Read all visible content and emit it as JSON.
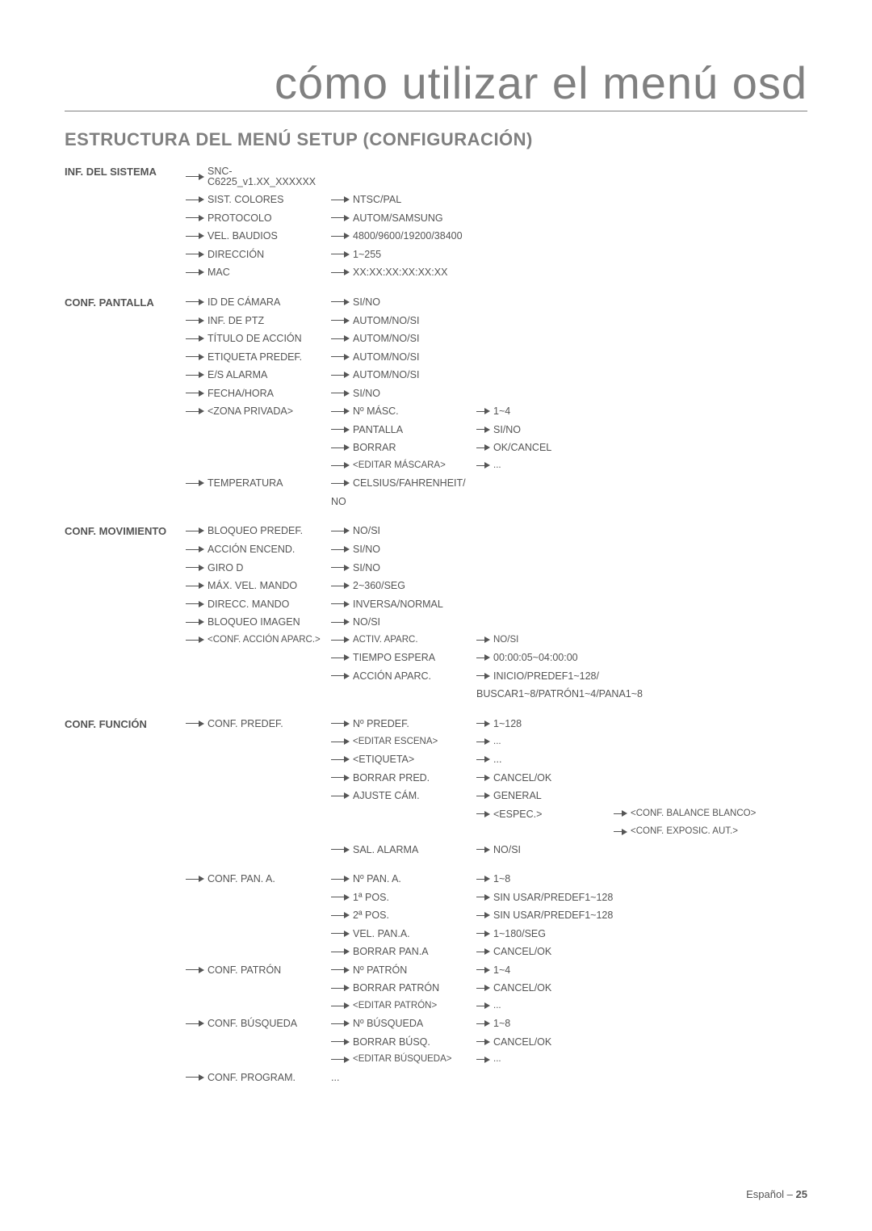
{
  "title": "cómo utilizar el menú osd",
  "section_header": "ESTRUCTURA DEL MENÚ SETUP (CONFIGURACIÓN)",
  "footer_label": "Español – ",
  "footer_page": "25",
  "sections": [
    {
      "category": "INF. DEL SISTEMA",
      "rows": [
        {
          "c1": "SNC-C6225_v1.XX_XXXXXX",
          "c2": "",
          "c3": "",
          "c4": ""
        },
        {
          "c1": "SIST. COLORES",
          "c2": "NTSC/PAL",
          "c3": "",
          "c4": ""
        },
        {
          "c1": "PROTOCOLO",
          "c2": "AUTOM/SAMSUNG",
          "c3": "",
          "c4": ""
        },
        {
          "c1": "VEL. BAUDIOS",
          "c2": "4800/9600/19200/38400",
          "c3": "",
          "c4": ""
        },
        {
          "c1": "DIRECCIÓN",
          "c2": "1~255",
          "c3": "",
          "c4": ""
        },
        {
          "c1": "MAC",
          "c2": "XX:XX:XX:XX:XX:XX",
          "c3": "",
          "c4": ""
        }
      ]
    },
    {
      "category": "CONF. PANTALLA",
      "rows": [
        {
          "c1": "ID DE CÁMARA",
          "c2": "SI/NO",
          "c3": "",
          "c4": ""
        },
        {
          "c1": "INF. DE PTZ",
          "c2": "AUTOM/NO/SI",
          "c3": "",
          "c4": ""
        },
        {
          "c1": "TÍTULO DE ACCIÓN",
          "c2": "AUTOM/NO/SI",
          "c3": "",
          "c4": ""
        },
        {
          "c1": "ETIQUETA PREDEF.",
          "c2": "AUTOM/NO/SI",
          "c3": "",
          "c4": ""
        },
        {
          "c1": "E/S ALARMA",
          "c2": "AUTOM/NO/SI",
          "c3": "",
          "c4": ""
        },
        {
          "c1": "FECHA/HORA",
          "c2": "SI/NO",
          "c3": "",
          "c4": ""
        },
        {
          "c1": "<ZONA PRIVADA>",
          "c2": "Nº MÁSC.",
          "c3": "1~4",
          "c4": ""
        },
        {
          "c1": "",
          "c2": "PANTALLA",
          "c3": "SI/NO",
          "c4": ""
        },
        {
          "c1": "",
          "c2": "BORRAR",
          "c3": "OK/CANCEL",
          "c4": ""
        },
        {
          "c1": "",
          "c2": "<EDITAR MÁSCARA>",
          "c3": "...",
          "c4": "",
          "sm": true
        },
        {
          "c1": "TEMPERATURA",
          "c2": "CELSIUS/FAHRENHEIT/",
          "c3": "",
          "c4": ""
        },
        {
          "c1": "",
          "c2": "NO",
          "noarrow2": true,
          "c3": "",
          "c4": ""
        }
      ]
    },
    {
      "category": "CONF. MOVIMIENTO",
      "rows": [
        {
          "c1": "BLOQUEO PREDEF.",
          "c2": "NO/SI",
          "c3": "",
          "c4": ""
        },
        {
          "c1": "ACCIÓN ENCEND.",
          "c2": "SI/NO",
          "c3": "",
          "c4": ""
        },
        {
          "c1": "GIRO D",
          "c2": "SI/NO",
          "c3": "",
          "c4": ""
        },
        {
          "c1": "MÁX. VEL. MANDO",
          "c2": "2~360/SEG",
          "c3": "",
          "c4": ""
        },
        {
          "c1": "DIRECC. MANDO",
          "c2": "INVERSA/NORMAL",
          "c3": "",
          "c4": ""
        },
        {
          "c1": "BLOQUEO IMAGEN",
          "c2": "NO/SI",
          "c3": "",
          "c4": ""
        },
        {
          "c1": "<CONF. ACCIÓN APARC.>",
          "c2": "ACTIV. APARC.",
          "c3": "NO/SI",
          "c4": "",
          "sm": true
        },
        {
          "c1": "",
          "c2": "TIEMPO ESPERA",
          "c3": "00:00:05~04:00:00",
          "c4": ""
        },
        {
          "c1": "",
          "c2": "ACCIÓN APARC.",
          "c3": "INICIO/PREDEF1~128/",
          "c4": ""
        },
        {
          "c1": "",
          "c2": "",
          "c3": "BUSCAR1~8/PATRÓN1~4/PANA1~8",
          "noarrow3": true,
          "c4": ""
        }
      ]
    },
    {
      "category": "CONF. FUNCIÓN",
      "rows": [
        {
          "c1": "CONF. PREDEF.",
          "c2": "Nº PREDEF.",
          "c3": "1~128",
          "c4": ""
        },
        {
          "c1": "",
          "c2": "<EDITAR ESCENA>",
          "c3": "...",
          "c4": "",
          "sm": true
        },
        {
          "c1": "",
          "c2": "<ETIQUETA>",
          "c3": "...",
          "c4": ""
        },
        {
          "c1": "",
          "c2": "BORRAR PRED.",
          "c3": "CANCEL/OK",
          "c4": ""
        },
        {
          "c1": "",
          "c2": "AJUSTE CÁM.",
          "c3": "GENERAL",
          "c4": ""
        },
        {
          "c1": "",
          "c2": "",
          "c3": "<ESPEC.>",
          "c4": "<CONF. BALANCE BLANCO>"
        },
        {
          "c1": "",
          "c2": "",
          "c3": "",
          "c4": "<CONF. EXPOSIC. AUT.>"
        },
        {
          "c1": "",
          "c2": "SAL. ALARMA",
          "c3": "NO/SI",
          "c4": ""
        },
        {
          "c1": "CONF. PAN. A.",
          "c2": "Nº PAN. A.",
          "c3": "1~8",
          "c4": "",
          "gap": true
        },
        {
          "c1": "",
          "c2": "1ª POS.",
          "c3": "SIN USAR/PREDEF1~128",
          "c4": ""
        },
        {
          "c1": "",
          "c2": "2ª POS.",
          "c3": "SIN USAR/PREDEF1~128",
          "c4": ""
        },
        {
          "c1": "",
          "c2": "VEL. PAN.A.",
          "c3": "1~180/SEG",
          "c4": ""
        },
        {
          "c1": "",
          "c2": "BORRAR PAN.A",
          "c3": "CANCEL/OK",
          "c4": ""
        },
        {
          "c1": "CONF. PATRÓN",
          "c2": "Nº PATRÓN",
          "c3": "1~4",
          "c4": ""
        },
        {
          "c1": "",
          "c2": "BORRAR PATRÓN",
          "c3": "CANCEL/OK",
          "c4": ""
        },
        {
          "c1": "",
          "c2": "<EDITAR PATRÓN>",
          "c3": "...",
          "c4": "",
          "sm": true
        },
        {
          "c1": "CONF. BÚSQUEDA",
          "c2": "Nº BÚSQUEDA",
          "c3": "1~8",
          "c4": ""
        },
        {
          "c1": "",
          "c2": "BORRAR BÚSQ.",
          "c3": "CANCEL/OK",
          "c4": ""
        },
        {
          "c1": "",
          "c2": "<EDITAR BÚSQUEDA>",
          "c3": "...",
          "c4": "",
          "sm": true
        },
        {
          "c1": "CONF. PROGRAM.",
          "c2": "...",
          "noarrow2": true,
          "c3": "",
          "c4": ""
        }
      ]
    }
  ]
}
